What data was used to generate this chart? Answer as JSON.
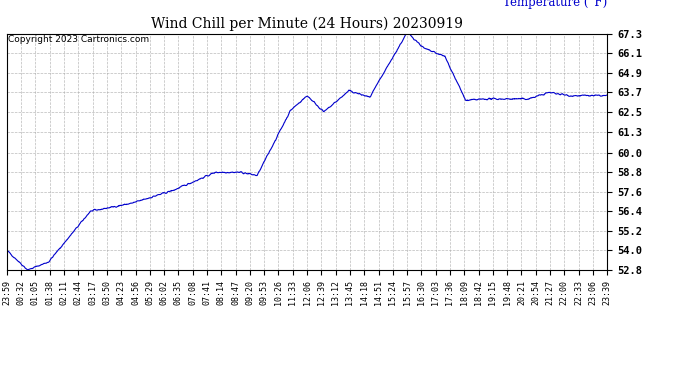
{
  "title": "Wind Chill per Minute (24 Hours) 20230919",
  "ylabel": "Temperature (°F)",
  "copyright": "Copyright 2023 Cartronics.com",
  "line_color": "#0000cc",
  "background_color": "#ffffff",
  "grid_color": "#aaaaaa",
  "ylim": [
    52.8,
    67.3
  ],
  "yticks": [
    52.8,
    54.0,
    55.2,
    56.4,
    57.6,
    58.8,
    60.0,
    61.3,
    62.5,
    63.7,
    64.9,
    66.1,
    67.3
  ],
  "xtick_labels": [
    "23:59",
    "00:32",
    "01:05",
    "01:38",
    "02:11",
    "02:44",
    "03:17",
    "03:50",
    "04:23",
    "04:56",
    "05:29",
    "06:02",
    "06:35",
    "07:08",
    "07:41",
    "08:14",
    "08:47",
    "09:20",
    "09:53",
    "10:26",
    "11:33",
    "12:06",
    "12:39",
    "13:12",
    "13:45",
    "14:18",
    "14:51",
    "15:24",
    "15:57",
    "16:30",
    "17:03",
    "17:36",
    "18:09",
    "18:42",
    "19:15",
    "19:48",
    "20:21",
    "20:54",
    "21:27",
    "22:00",
    "22:33",
    "23:06",
    "23:39"
  ]
}
